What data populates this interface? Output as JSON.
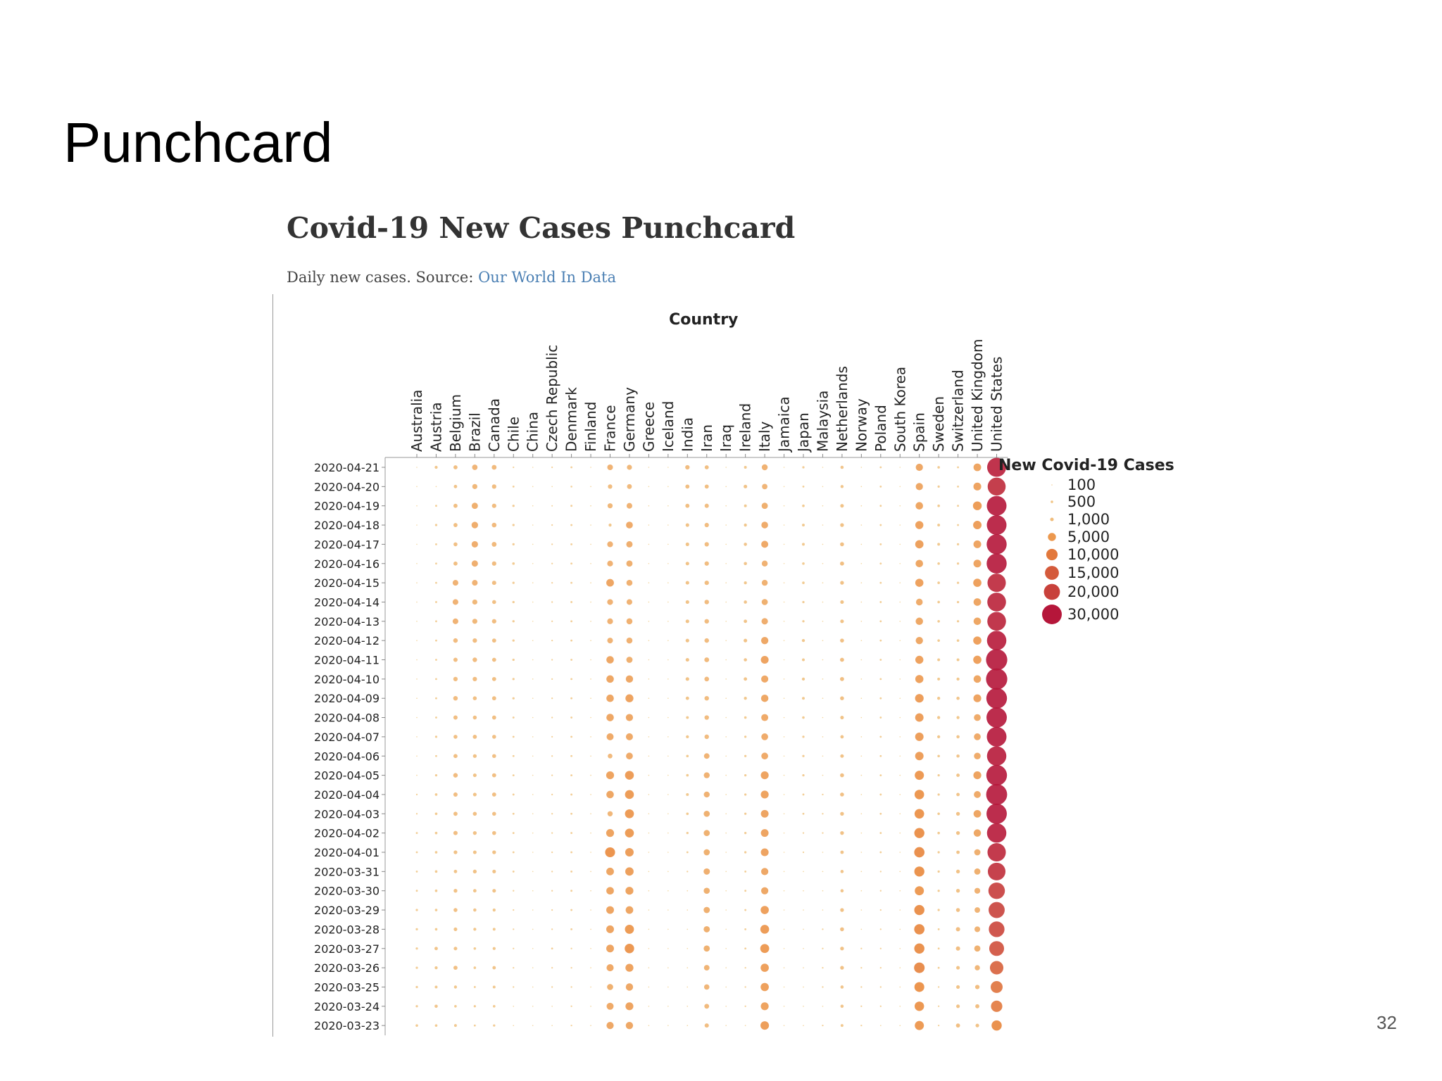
{
  "slide": {
    "title": "Punchcard",
    "page_number": "32"
  },
  "chart_data": {
    "type": "scatter",
    "title": "Covid-19 New Cases Punchcard",
    "subtitle_text": "Daily new cases. Source: ",
    "subtitle_link": "Our World In Data",
    "xlabel": "Country",
    "ylabel": "",
    "legend_title": "New Covid-19 Cases",
    "legend_placement": "right",
    "grid": false,
    "colors": {
      "low": "#f3d9a0",
      "mid": "#ea8a3c",
      "high": "#b5163a"
    },
    "legend_values": [
      100,
      500,
      1000,
      5000,
      10000,
      15000,
      20000,
      30000
    ],
    "legend_labels": [
      "100",
      "500",
      "1,000",
      "5,000",
      "10,000",
      "15,000",
      "20,000",
      "30,000"
    ],
    "x": [
      "Australia",
      "Austria",
      "Belgium",
      "Brazil",
      "Canada",
      "Chile",
      "China",
      "Czech Republic",
      "Denmark",
      "Finland",
      "France",
      "Germany",
      "Greece",
      "Iceland",
      "India",
      "Iran",
      "Iraq",
      "Ireland",
      "Italy",
      "Jamaica",
      "Japan",
      "Malaysia",
      "Netherlands",
      "Norway",
      "Poland",
      "South Korea",
      "Spain",
      "Sweden",
      "Switzerland",
      "United Kingdom",
      "United States"
    ],
    "y": [
      "2020-04-21",
      "2020-04-20",
      "2020-04-19",
      "2020-04-18",
      "2020-04-17",
      "2020-04-16",
      "2020-04-15",
      "2020-04-14",
      "2020-04-13",
      "2020-04-12",
      "2020-04-11",
      "2020-04-10",
      "2020-04-09",
      "2020-04-08",
      "2020-04-07",
      "2020-04-06",
      "2020-04-05",
      "2020-04-04",
      "2020-04-03",
      "2020-04-02",
      "2020-04-01",
      "2020-03-31",
      "2020-03-30",
      "2020-03-29",
      "2020-03-28",
      "2020-03-27",
      "2020-03-26",
      "2020-03-25",
      "2020-03-24",
      "2020-03-23"
    ],
    "series": [
      {
        "values": [
          20,
          700,
          1300,
          2300,
          1800,
          200,
          20,
          200,
          300,
          100,
          2500,
          2000,
          50,
          10,
          1500,
          1300,
          50,
          600,
          2700,
          20,
          400,
          50,
          800,
          100,
          300,
          10,
          4000,
          500,
          300,
          4500,
          28000
        ]
      },
      {
        "values": [
          20,
          100,
          900,
          2000,
          1500,
          300,
          20,
          100,
          250,
          100,
          1500,
          1800,
          50,
          10,
          1300,
          1300,
          50,
          1000,
          2300,
          20,
          300,
          50,
          750,
          100,
          300,
          10,
          4000,
          400,
          300,
          4700,
          25000
        ]
      },
      {
        "values": [
          20,
          300,
          1300,
          3000,
          1500,
          400,
          20,
          150,
          300,
          100,
          2000,
          2500,
          50,
          10,
          1300,
          1400,
          50,
          600,
          3000,
          20,
          500,
          50,
          1000,
          100,
          300,
          10,
          4300,
          500,
          300,
          5900,
          30000
        ]
      },
      {
        "values": [
          30,
          400,
          1300,
          3300,
          1700,
          400,
          20,
          200,
          300,
          100,
          700,
          3600,
          50,
          10,
          1000,
          1500,
          50,
          700,
          3500,
          20,
          600,
          50,
          1100,
          100,
          300,
          20,
          5000,
          600,
          300,
          5500,
          30000
        ]
      },
      {
        "values": [
          40,
          300,
          1200,
          3200,
          1800,
          400,
          20,
          200,
          300,
          100,
          2600,
          3100,
          50,
          10,
          1000,
          1500,
          50,
          800,
          3800,
          20,
          600,
          100,
          1200,
          100,
          300,
          20,
          5300,
          600,
          400,
          4600,
          31000
        ]
      },
      {
        "values": [
          40,
          300,
          1300,
          3100,
          1500,
          500,
          30,
          200,
          300,
          100,
          2600,
          3000,
          50,
          10,
          1000,
          1500,
          50,
          800,
          2700,
          20,
          500,
          100,
          1300,
          100,
          300,
          20,
          4300,
          500,
          400,
          4600,
          31000
        ]
      },
      {
        "values": [
          40,
          300,
          2500,
          2500,
          1400,
          400,
          20,
          200,
          300,
          100,
          4500,
          2800,
          50,
          10,
          1000,
          1500,
          50,
          700,
          2700,
          20,
          500,
          100,
          1100,
          100,
          300,
          30,
          5100,
          500,
          400,
          5200,
          26000
        ]
      },
      {
        "values": [
          40,
          300,
          2500,
          2000,
          1200,
          400,
          20,
          200,
          300,
          100,
          2600,
          2500,
          50,
          10,
          1000,
          1600,
          50,
          800,
          2900,
          20,
          400,
          100,
          1000,
          100,
          300,
          30,
          3500,
          500,
          400,
          4400,
          27000
        ]
      },
      {
        "values": [
          50,
          300,
          2500,
          2000,
          1500,
          400,
          20,
          200,
          300,
          100,
          2600,
          2800,
          50,
          10,
          1000,
          1600,
          50,
          900,
          3200,
          20,
          400,
          100,
          1000,
          100,
          300,
          30,
          4200,
          500,
          400,
          4300,
          27000
        ]
      },
      {
        "values": [
          50,
          300,
          1600,
          1500,
          1300,
          400,
          30,
          200,
          300,
          100,
          2500,
          2800,
          50,
          10,
          1000,
          1600,
          50,
          1000,
          4100,
          20,
          700,
          100,
          1200,
          100,
          300,
          30,
          4100,
          500,
          500,
          5200,
          29000
        ]
      },
      {
        "values": [
          100,
          300,
          1400,
          1600,
          1300,
          400,
          30,
          200,
          300,
          100,
          4300,
          3000,
          50,
          10,
          1000,
          1800,
          50,
          800,
          4700,
          20,
          600,
          100,
          1300,
          100,
          300,
          30,
          5000,
          600,
          600,
          5200,
          35000
        ]
      },
      {
        "values": [
          100,
          300,
          1500,
          1500,
          1300,
          400,
          30,
          200,
          300,
          100,
          4300,
          4100,
          50,
          10,
          1000,
          1700,
          50,
          900,
          3900,
          20,
          700,
          100,
          1300,
          100,
          300,
          30,
          5100,
          600,
          700,
          4300,
          35000
        ]
      },
      {
        "values": [
          100,
          300,
          1600,
          1200,
          1300,
          400,
          30,
          200,
          300,
          100,
          4300,
          4900,
          50,
          10,
          900,
          1600,
          50,
          700,
          4200,
          20,
          600,
          100,
          1200,
          100,
          300,
          30,
          5700,
          700,
          800,
          4700,
          33000
        ]
      },
      {
        "values": [
          100,
          300,
          1400,
          1200,
          1300,
          300,
          30,
          200,
          300,
          100,
          4300,
          4000,
          50,
          10,
          600,
          1600,
          50,
          500,
          3800,
          20,
          500,
          100,
          1000,
          100,
          300,
          50,
          5500,
          700,
          700,
          3600,
          32000
        ]
      },
      {
        "values": [
          100,
          400,
          1200,
          1300,
          1200,
          300,
          30,
          200,
          300,
          100,
          3800,
          3800,
          50,
          10,
          700,
          1600,
          50,
          400,
          3600,
          20,
          400,
          100,
          900,
          100,
          300,
          50,
          5500,
          700,
          800,
          3600,
          30000
        ]
      },
      {
        "values": [
          100,
          300,
          1300,
          1100,
          1200,
          300,
          30,
          200,
          300,
          100,
          1700,
          3600,
          50,
          10,
          500,
          2400,
          50,
          400,
          3600,
          20,
          400,
          100,
          1000,
          100,
          300,
          50,
          5500,
          500,
          800,
          3500,
          29000
        ]
      },
      {
        "values": [
          100,
          400,
          1600,
          1000,
          1300,
          300,
          30,
          200,
          300,
          100,
          4800,
          6000,
          50,
          10,
          500,
          2700,
          50,
          400,
          4800,
          20,
          400,
          100,
          1200,
          100,
          300,
          60,
          6500,
          400,
          900,
          4800,
          33000
        ]
      },
      {
        "values": [
          200,
          500,
          1400,
          1000,
          1300,
          300,
          30,
          200,
          300,
          100,
          4300,
          6100,
          50,
          10,
          600,
          2700,
          50,
          400,
          4800,
          20,
          300,
          200,
          1200,
          100,
          300,
          80,
          7000,
          400,
          900,
          3700,
          34000
        ]
      },
      {
        "values": [
          200,
          500,
          1300,
          1200,
          1200,
          300,
          30,
          200,
          300,
          100,
          2100,
          6200,
          50,
          10,
          500,
          2900,
          50,
          400,
          4600,
          20,
          300,
          200,
          1100,
          100,
          300,
          90,
          7100,
          500,
          1100,
          4400,
          32000
        ]
      },
      {
        "values": [
          300,
          500,
          1400,
          1100,
          1200,
          300,
          30,
          200,
          300,
          100,
          4800,
          6100,
          50,
          10,
          400,
          2900,
          50,
          400,
          4600,
          20,
          200,
          200,
          1100,
          100,
          300,
          100,
          7900,
          500,
          1100,
          4200,
          29000
        ]
      },
      {
        "values": [
          300,
          500,
          1100,
          1000,
          1100,
          300,
          30,
          200,
          300,
          100,
          7600,
          5500,
          50,
          10,
          300,
          2900,
          50,
          400,
          4700,
          20,
          200,
          100,
          900,
          100,
          300,
          90,
          8200,
          400,
          900,
          3000,
          26000
        ]
      },
      {
        "values": [
          300,
          500,
          900,
          1100,
          1000,
          300,
          30,
          200,
          300,
          100,
          4500,
          5400,
          50,
          10,
          200,
          3100,
          50,
          300,
          4000,
          20,
          100,
          100,
          800,
          100,
          200,
          100,
          7800,
          400,
          1100,
          3000,
          24000
        ]
      },
      {
        "values": [
          300,
          500,
          1100,
          900,
          1000,
          200,
          30,
          200,
          300,
          100,
          4400,
          4800,
          50,
          10,
          100,
          2900,
          50,
          300,
          4000,
          20,
          100,
          100,
          800,
          100,
          200,
          80,
          6400,
          400,
          1100,
          2600,
          21000
        ]
      },
      {
        "values": [
          400,
          500,
          1200,
          800,
          700,
          200,
          30,
          200,
          300,
          100,
          4600,
          4500,
          50,
          10,
          100,
          3000,
          50,
          300,
          5200,
          20,
          100,
          100,
          1100,
          100,
          200,
          100,
          8000,
          400,
          1200,
          2400,
          20000
        ]
      },
      {
        "values": [
          400,
          500,
          1000,
          700,
          600,
          200,
          30,
          200,
          300,
          100,
          4600,
          6300,
          50,
          10,
          100,
          3000,
          50,
          300,
          6000,
          20,
          100,
          200,
          1200,
          100,
          200,
          100,
          8200,
          300,
          1400,
          2500,
          19000
        ]
      },
      {
        "values": [
          400,
          900,
          1000,
          500,
          700,
          200,
          30,
          300,
          200,
          100,
          4600,
          6900,
          50,
          10,
          100,
          2900,
          50,
          300,
          6200,
          20,
          100,
          200,
          1100,
          200,
          200,
          100,
          8000,
          300,
          1400,
          2900,
          17000
        ]
      },
      {
        "values": [
          400,
          700,
          1300,
          500,
          900,
          200,
          30,
          200,
          200,
          100,
          3900,
          4900,
          50,
          10,
          100,
          2400,
          50,
          200,
          5200,
          20,
          100,
          200,
          1100,
          200,
          200,
          100,
          8600,
          300,
          1000,
          2100,
          14000
        ]
      },
      {
        "values": [
          400,
          600,
          700,
          300,
          600,
          200,
          30,
          200,
          200,
          100,
          2900,
          4100,
          50,
          10,
          100,
          2200,
          50,
          200,
          5200,
          20,
          100,
          200,
          800,
          200,
          200,
          100,
          7500,
          200,
          1000,
          1500,
          11000
        ]
      },
      {
        "values": [
          400,
          800,
          500,
          400,
          500,
          100,
          30,
          100,
          200,
          100,
          3800,
          4800,
          50,
          10,
          100,
          1800,
          50,
          200,
          4800,
          20,
          100,
          100,
          800,
          200,
          200,
          100,
          6900,
          200,
          1000,
          1300,
          10000
        ]
      },
      {
        "values": [
          500,
          500,
          600,
          300,
          400,
          100,
          30,
          100,
          200,
          100,
          4000,
          4100,
          50,
          10,
          100,
          1400,
          50,
          100,
          5600,
          20,
          100,
          200,
          600,
          200,
          100,
          100,
          6400,
          200,
          1300,
          1000,
          8000
        ]
      }
    ]
  }
}
